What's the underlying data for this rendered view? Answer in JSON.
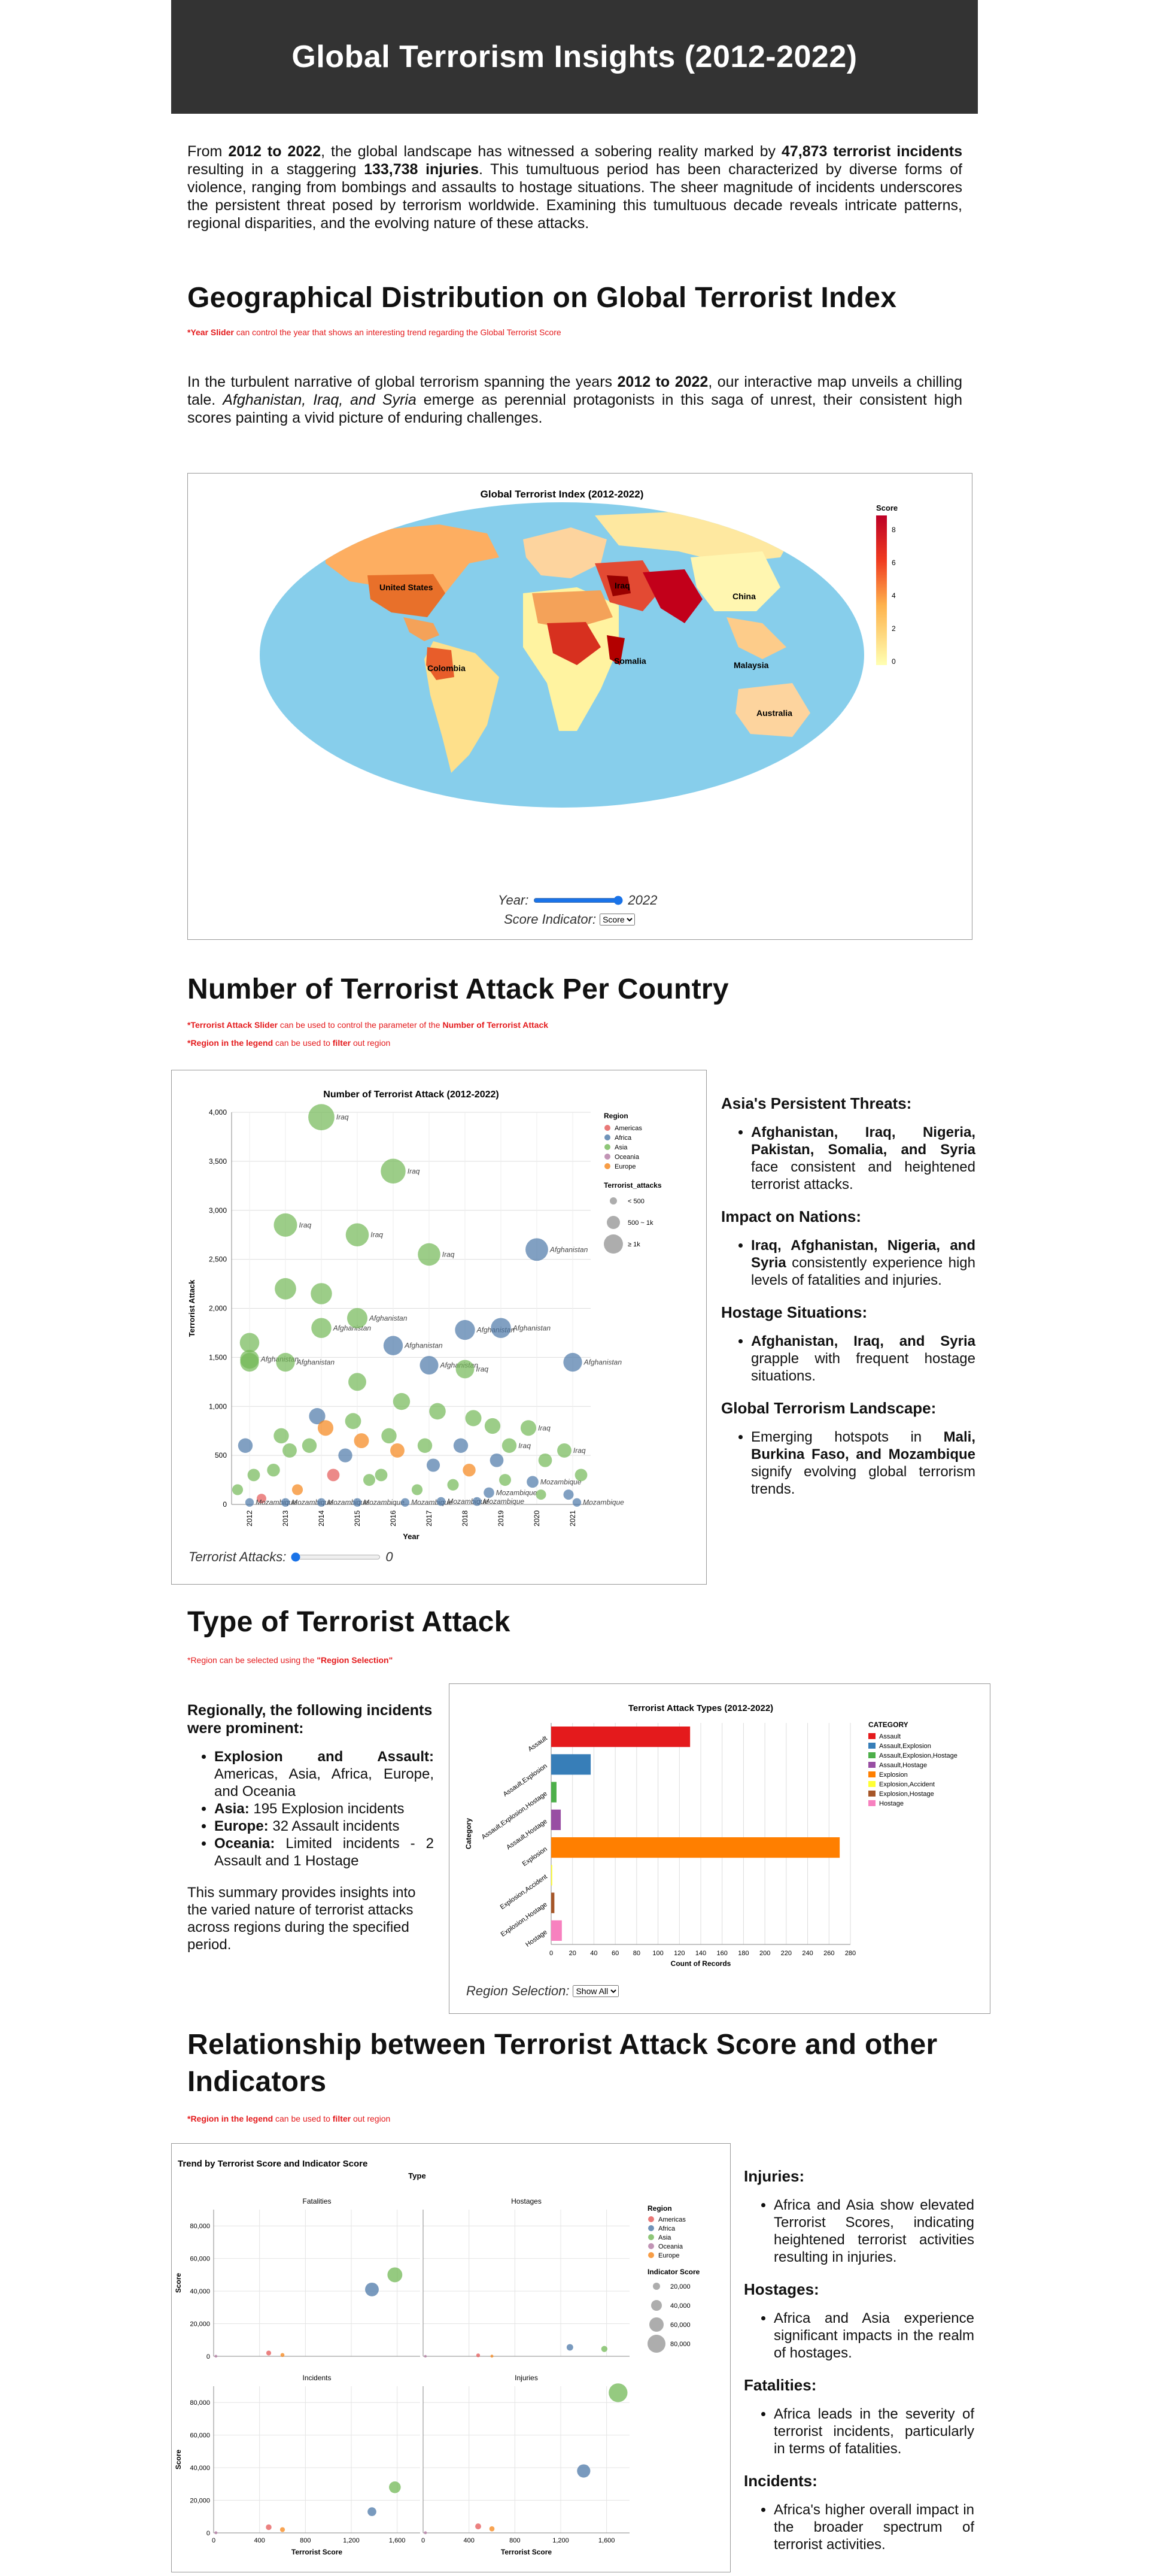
{
  "header": {
    "title": "Global Terrorism Insights (2012-2022)"
  },
  "intro": {
    "p1_a": "From ",
    "p1_years": "2012 to 2022",
    "p1_b": ", the global landscape has witnessed a sobering reality marked by ",
    "p1_incidents": "47,873 terrorist incidents",
    "p1_c": " resulting in a staggering ",
    "p1_injuries": "133,738 injuries",
    "p1_d": ". This tumultuous period has been characterized by diverse forms of violence, ranging from bombings and assaults to hostage situations. The sheer magnitude of incidents underscores the persistent threat posed by terrorism worldwide. Examining this tumultuous decade reveals intricate patterns, regional disparities, and the evolving nature of these attacks."
  },
  "geo": {
    "heading": "Geographical Distribution on Global Terrorist Index",
    "note_bold": "*Year Slider",
    "note_rest": " can control the year that shows an interesting trend regarding the Global Terrorist Score",
    "p_a": "In the turbulent narrative of global terrorism spanning the years ",
    "p_years": "2012 to 2022",
    "p_b": ", our interactive map unveils a chilling tale. ",
    "p_countries": "Afghanistan, Iraq, and Syria",
    "p_c": " emerge as perennial protagonists in this saga of unrest, their consistent high scores painting a vivid picture of enduring challenges.",
    "map_title": "Global Terrorist Index (2012-2022)",
    "legend_title": "Score",
    "legend_ticks": [
      "8",
      "6",
      "4",
      "2",
      "0"
    ],
    "labels": [
      "United States",
      "Iraq",
      "China",
      "Colombia",
      "Somalia",
      "Malaysia",
      "Australia"
    ],
    "year_label": "Year:",
    "year_value": "2022",
    "indicator_label": "Score Indicator:",
    "indicator_value": "Score"
  },
  "attacks": {
    "heading": "Number of Terrorist Attack Per Country",
    "note1_a": "*Terrorist Attack Slider",
    "note1_b": " can be used to control the parameter of the ",
    "note1_c": "Number of Terrorist Attack",
    "note2_a": "*Region in the legend",
    "note2_b": " can be used to ",
    "note2_c": "filter",
    "note2_d": " out region",
    "slider_label": "Terrorist Attacks:",
    "slider_value": "0",
    "side": [
      {
        "title": "Asia's Persistent Threats:",
        "bold": "Afghanistan, Iraq, Nigeria, Pakistan, Somalia, and Syria",
        "rest": " face consistent and heightened terrorist attacks."
      },
      {
        "title": "Impact on Nations:",
        "bold": "Iraq, Afghanistan, Nigeria, and Syria",
        "rest": " consistently experience high levels of fatalities and injuries."
      },
      {
        "title": "Hostage Situations:",
        "bold": "Afghanistan, Iraq, and Syria",
        "rest": " grapple with frequent hostage situations."
      },
      {
        "title": "Global Terrorism Landscape:",
        "pre": "Emerging hotspots in ",
        "bold": "Mali, Burkina Faso, and Mozambique",
        "rest": " signify evolving global terrorism trends."
      }
    ]
  },
  "types": {
    "heading": "Type of Terrorist Attack",
    "note_a": "*Region can be selected using the ",
    "note_b": "\"Region Selection\"",
    "lead": "Regionally, the following incidents were prominent:",
    "items": [
      {
        "bold": "Explosion and Assault:",
        "rest": " Americas, Asia, Africa, Europe, and Oceania"
      },
      {
        "bold": "Asia:",
        "rest": " 195 Explosion incidents"
      },
      {
        "bold": "Europe:",
        "rest": " 32 Assault incidents"
      },
      {
        "bold": "Oceania:",
        "rest": " Limited incidents - 2 Assault and 1 Hostage"
      }
    ],
    "summary": "This summary provides insights into the varied nature of terrorist attacks across regions during the specified period.",
    "select_label": "Region Selection:",
    "select_value": "Show All"
  },
  "relation": {
    "heading": "Relationship between Terrorist Attack Score and other Indicators",
    "note_a": "*Region in the legend",
    "note_b": " can be used to ",
    "note_c": "filter",
    "note_d": " out region",
    "side": [
      {
        "title": "Injuries:",
        "text": "Africa and Asia show elevated Terrorist Scores, indicating heightened terrorist activities resulting in injuries."
      },
      {
        "title": "Hostages:",
        "text": "Africa and Asia experience significant impacts in the realm of hostages."
      },
      {
        "title": "Fatalities:",
        "text": "Africa leads in the severity of terrorist incidents, particularly in terms of fatalities."
      },
      {
        "title": "Incidents:",
        "text": "Africa's higher overall impact in the broader spectrum of terrorist activities."
      }
    ]
  },
  "colors": {
    "Americas": "#e45756",
    "Africa": "#4c78a8",
    "Asia": "#72b856",
    "Oceania": "#b279a2",
    "Europe": "#f58518",
    "map_water": "#87ceeb",
    "header_bg": "#333333"
  },
  "chart_data": [
    {
      "type": "scatter",
      "title": "Number of Terrorist Attack (2012-2022)",
      "xlabel": "Year",
      "ylabel": "Terrorist Attack",
      "categories": [
        "2012",
        "2013",
        "2014",
        "2015",
        "2016",
        "2017",
        "2018",
        "2019",
        "2020",
        "2021"
      ],
      "ylim": [
        0,
        4000
      ],
      "yticks": [
        0,
        500,
        1000,
        1500,
        2000,
        2500,
        3000,
        3500,
        4000
      ],
      "legend": {
        "title": "Region",
        "items": [
          "Americas",
          "Africa",
          "Asia",
          "Oceania",
          "Europe"
        ],
        "size_title": "Terrorist_attacks",
        "size_items": [
          "< 500",
          "500 ~ 1k",
          "≥ 1k"
        ]
      },
      "points": [
        {
          "year": "2012",
          "region": "Asia",
          "value": 1650
        },
        {
          "year": "2012",
          "region": "Asia",
          "value": 1480,
          "label": "Afghanistan"
        },
        {
          "year": "2012",
          "region": "Asia",
          "value": 1450
        },
        {
          "year": "2012",
          "region": "Africa",
          "value": 600
        },
        {
          "year": "2012",
          "region": "Asia",
          "value": 300
        },
        {
          "year": "2012",
          "region": "Asia",
          "value": 150
        },
        {
          "year": "2012",
          "region": "Americas",
          "value": 60
        },
        {
          "year": "2012",
          "region": "Africa",
          "value": 20,
          "label": "Mozambique"
        },
        {
          "year": "2013",
          "region": "Asia",
          "value": 2850,
          "label": "Iraq"
        },
        {
          "year": "2013",
          "region": "Asia",
          "value": 2200
        },
        {
          "year": "2013",
          "region": "Asia",
          "value": 1450,
          "label": "Afghanistan"
        },
        {
          "year": "2013",
          "region": "Asia",
          "value": 700
        },
        {
          "year": "2013",
          "region": "Asia",
          "value": 550
        },
        {
          "year": "2013",
          "region": "Asia",
          "value": 350
        },
        {
          "year": "2013",
          "region": "Europe",
          "value": 150
        },
        {
          "year": "2013",
          "region": "Africa",
          "value": 20,
          "label": "Mozambique"
        },
        {
          "year": "2014",
          "region": "Asia",
          "value": 3950,
          "label": "Iraq"
        },
        {
          "year": "2014",
          "region": "Asia",
          "value": 2150
        },
        {
          "year": "2014",
          "region": "Asia",
          "value": 1800,
          "label": "Afghanistan"
        },
        {
          "year": "2014",
          "region": "Africa",
          "value": 900
        },
        {
          "year": "2014",
          "region": "Europe",
          "value": 780
        },
        {
          "year": "2014",
          "region": "Asia",
          "value": 600
        },
        {
          "year": "2014",
          "region": "Americas",
          "value": 300
        },
        {
          "year": "2014",
          "region": "Africa",
          "value": 20,
          "label": "Mozambique"
        },
        {
          "year": "2015",
          "region": "Asia",
          "value": 2750,
          "label": "Iraq"
        },
        {
          "year": "2015",
          "region": "Asia",
          "value": 1900,
          "label": "Afghanistan"
        },
        {
          "year": "2015",
          "region": "Asia",
          "value": 1250
        },
        {
          "year": "2015",
          "region": "Asia",
          "value": 850
        },
        {
          "year": "2015",
          "region": "Europe",
          "value": 650
        },
        {
          "year": "2015",
          "region": "Africa",
          "value": 500
        },
        {
          "year": "2015",
          "region": "Asia",
          "value": 250
        },
        {
          "year": "2015",
          "region": "Africa",
          "value": 20,
          "label": "Mozambique"
        },
        {
          "year": "2016",
          "region": "Asia",
          "value": 3400,
          "label": "Iraq"
        },
        {
          "year": "2016",
          "region": "Africa",
          "value": 1620,
          "label": "Afghanistan"
        },
        {
          "year": "2016",
          "region": "Asia",
          "value": 1050
        },
        {
          "year": "2016",
          "region": "Asia",
          "value": 700
        },
        {
          "year": "2016",
          "region": "Europe",
          "value": 550
        },
        {
          "year": "2016",
          "region": "Asia",
          "value": 300
        },
        {
          "year": "2016",
          "region": "Africa",
          "value": 20,
          "label": "Mozambique"
        },
        {
          "year": "2017",
          "region": "Asia",
          "value": 2550,
          "label": "Iraq"
        },
        {
          "year": "2017",
          "region": "Africa",
          "value": 1420,
          "label": "Afghanistan"
        },
        {
          "year": "2017",
          "region": "Asia",
          "value": 950
        },
        {
          "year": "2017",
          "region": "Asia",
          "value": 600
        },
        {
          "year": "2017",
          "region": "Africa",
          "value": 400
        },
        {
          "year": "2017",
          "region": "Asia",
          "value": 150
        },
        {
          "year": "2017",
          "region": "Africa",
          "value": 30,
          "label": "Mozambique"
        },
        {
          "year": "2018",
          "region": "Africa",
          "value": 1780,
          "label": "Afghanistan"
        },
        {
          "year": "2018",
          "region": "Asia",
          "value": 1380,
          "label": "Iraq"
        },
        {
          "year": "2018",
          "region": "Asia",
          "value": 880
        },
        {
          "year": "2018",
          "region": "Africa",
          "value": 600
        },
        {
          "year": "2018",
          "region": "Europe",
          "value": 350
        },
        {
          "year": "2018",
          "region": "Asia",
          "value": 200
        },
        {
          "year": "2018",
          "region": "Africa",
          "value": 30,
          "label": "Mozambique"
        },
        {
          "year": "2019",
          "region": "Africa",
          "value": 1800,
          "label": "Afghanistan"
        },
        {
          "year": "2019",
          "region": "Asia",
          "value": 800
        },
        {
          "year": "2019",
          "region": "Asia",
          "value": 600,
          "label": "Iraq"
        },
        {
          "year": "2019",
          "region": "Africa",
          "value": 450
        },
        {
          "year": "2019",
          "region": "Asia",
          "value": 250
        },
        {
          "year": "2019",
          "region": "Africa",
          "value": 120,
          "label": "Mozambique"
        },
        {
          "year": "2020",
          "region": "Africa",
          "value": 2600,
          "label": "Afghanistan"
        },
        {
          "year": "2020",
          "region": "Asia",
          "value": 780,
          "label": "Iraq"
        },
        {
          "year": "2020",
          "region": "Asia",
          "value": 450
        },
        {
          "year": "2020",
          "region": "Africa",
          "value": 230,
          "label": "Mozambique"
        },
        {
          "year": "2020",
          "region": "Asia",
          "value": 100
        },
        {
          "year": "2021",
          "region": "Africa",
          "value": 1450,
          "label": "Afghanistan"
        },
        {
          "year": "2021",
          "region": "Asia",
          "value": 550,
          "label": "Iraq"
        },
        {
          "year": "2021",
          "region": "Asia",
          "value": 300
        },
        {
          "year": "2021",
          "region": "Africa",
          "value": 100
        },
        {
          "year": "2021",
          "region": "Africa",
          "value": 20,
          "label": "Mozambique"
        }
      ]
    },
    {
      "type": "bar",
      "title": "Terrorist Attack Types (2012-2022)",
      "xlabel": "Count of Records",
      "ylabel": "Category",
      "categories": [
        "Assault",
        "Assault,Explosion",
        "Assault,Explosion,Hostage",
        "Assault,Hostage",
        "Explosion",
        "Explosion,Accident",
        "Explosion,Hostage",
        "Hostage"
      ],
      "values": [
        130,
        37,
        5,
        9,
        270,
        1,
        3,
        10
      ],
      "colors": [
        "#e41a1c",
        "#377eb8",
        "#4daf4a",
        "#984ea3",
        "#ff7f00",
        "#ffff33",
        "#a65628",
        "#f781bf"
      ],
      "xlim": [
        0,
        280
      ],
      "xticks": [
        0,
        20,
        40,
        60,
        80,
        100,
        120,
        140,
        160,
        180,
        200,
        220,
        240,
        260,
        280
      ],
      "legend": {
        "title": "CATEGORY"
      }
    },
    {
      "type": "scatter",
      "title": "Trend by Terrorist Score and Indicator Score",
      "facet_label": "Type",
      "xlabel": "Terrorist Score",
      "ylabel": "Score",
      "xlim": [
        0,
        1800
      ],
      "ylim": [
        0,
        90000
      ],
      "xticks": [
        0,
        400,
        800,
        1200,
        1600
      ],
      "yticks": [
        0,
        20000,
        40000,
        60000,
        80000
      ],
      "legend": {
        "title": "Region",
        "items": [
          "Americas",
          "Africa",
          "Asia",
          "Oceania",
          "Europe"
        ],
        "size_title": "Indicator Score",
        "size_items": [
          "20,000",
          "40,000",
          "60,000",
          "80,000"
        ]
      },
      "facets": [
        {
          "name": "Fatalities",
          "points": [
            {
              "region": "Asia",
              "x": 1580,
              "y": 50000
            },
            {
              "region": "Africa",
              "x": 1380,
              "y": 41000
            },
            {
              "region": "Americas",
              "x": 480,
              "y": 2000
            },
            {
              "region": "Europe",
              "x": 600,
              "y": 800
            },
            {
              "region": "Oceania",
              "x": 20,
              "y": 50
            }
          ]
        },
        {
          "name": "Hostages",
          "points": [
            {
              "region": "Africa",
              "x": 1280,
              "y": 5500
            },
            {
              "region": "Asia",
              "x": 1580,
              "y": 4500
            },
            {
              "region": "Americas",
              "x": 480,
              "y": 600
            },
            {
              "region": "Europe",
              "x": 600,
              "y": 100
            },
            {
              "region": "Oceania",
              "x": 20,
              "y": 20
            }
          ]
        },
        {
          "name": "Incidents",
          "points": [
            {
              "region": "Asia",
              "x": 1580,
              "y": 28000
            },
            {
              "region": "Africa",
              "x": 1380,
              "y": 13000
            },
            {
              "region": "Americas",
              "x": 480,
              "y": 3500
            },
            {
              "region": "Europe",
              "x": 600,
              "y": 2000
            },
            {
              "region": "Oceania",
              "x": 20,
              "y": 100
            }
          ]
        },
        {
          "name": "Injuries",
          "points": [
            {
              "region": "Asia",
              "x": 1700,
              "y": 86000
            },
            {
              "region": "Africa",
              "x": 1400,
              "y": 38000
            },
            {
              "region": "Americas",
              "x": 480,
              "y": 4000
            },
            {
              "region": "Europe",
              "x": 600,
              "y": 2500
            },
            {
              "region": "Oceania",
              "x": 20,
              "y": 100
            }
          ]
        }
      ]
    }
  ]
}
